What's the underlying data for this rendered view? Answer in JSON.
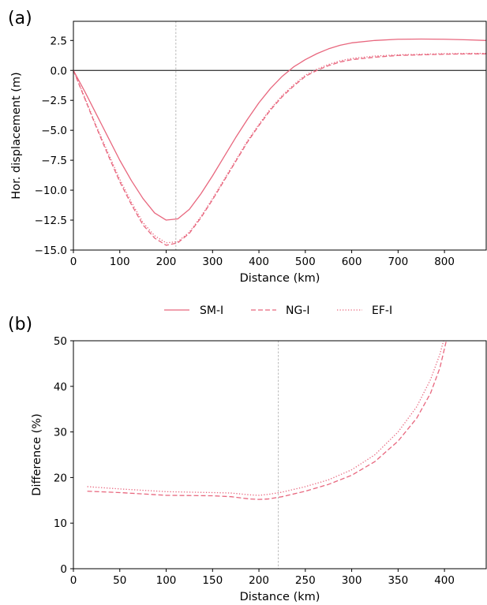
{
  "panel_labels": [
    "(a)",
    "(b)"
  ],
  "series_color": "#e8677e",
  "legend": [
    {
      "label": "SM-I",
      "style": "solid"
    },
    {
      "label": "NG-I",
      "style": "dashed"
    },
    {
      "label": "EF-I",
      "style": "dotted"
    }
  ],
  "chart_data": [
    {
      "type": "line",
      "xlabel": "Distance (km)",
      "ylabel": "Hor. displacement (m)",
      "xlim": [
        0,
        890
      ],
      "ylim": [
        -15,
        4.1
      ],
      "xticks": [
        0,
        100,
        200,
        300,
        400,
        500,
        600,
        700,
        800
      ],
      "yticks": [
        2.5,
        0.0,
        -2.5,
        -5.0,
        -7.5,
        -10.0,
        -12.5,
        -15.0
      ],
      "ytick_labels": [
        "2.5",
        "0.0",
        "−2.5",
        "−5.0",
        "−7.5",
        "−10.0",
        "−12.5",
        "−15.0"
      ],
      "zero_line": 0,
      "vline": 221,
      "series": [
        {
          "name": "SM-I",
          "style": "solid",
          "x": [
            0,
            25,
            50,
            75,
            100,
            125,
            150,
            175,
            200,
            225,
            250,
            275,
            300,
            325,
            350,
            375,
            400,
            425,
            450,
            475,
            500,
            525,
            550,
            575,
            600,
            650,
            700,
            750,
            800,
            850,
            890
          ],
          "y": [
            0,
            -1.8,
            -3.7,
            -5.6,
            -7.5,
            -9.2,
            -10.7,
            -11.9,
            -12.5,
            -12.4,
            -11.6,
            -10.3,
            -8.8,
            -7.2,
            -5.6,
            -4.1,
            -2.7,
            -1.5,
            -0.5,
            0.3,
            0.9,
            1.4,
            1.8,
            2.1,
            2.3,
            2.5,
            2.6,
            2.62,
            2.6,
            2.55,
            2.5
          ]
        },
        {
          "name": "NG-I",
          "style": "dashed",
          "x": [
            0,
            25,
            50,
            75,
            100,
            125,
            150,
            175,
            200,
            225,
            250,
            275,
            300,
            325,
            350,
            375,
            400,
            425,
            450,
            475,
            500,
            525,
            550,
            575,
            600,
            650,
            700,
            750,
            800,
            850,
            890
          ],
          "y": [
            0,
            -2.4,
            -4.8,
            -7.1,
            -9.3,
            -11.2,
            -12.9,
            -14.0,
            -14.6,
            -14.4,
            -13.6,
            -12.3,
            -10.8,
            -9.2,
            -7.6,
            -6.0,
            -4.6,
            -3.3,
            -2.2,
            -1.3,
            -0.5,
            0.0,
            0.4,
            0.7,
            0.9,
            1.1,
            1.25,
            1.3,
            1.35,
            1.38,
            1.38
          ]
        },
        {
          "name": "EF-I",
          "style": "dotted",
          "x": [
            0,
            25,
            50,
            75,
            100,
            125,
            150,
            175,
            200,
            225,
            250,
            275,
            300,
            325,
            350,
            375,
            400,
            425,
            450,
            475,
            500,
            525,
            550,
            575,
            600,
            650,
            700,
            750,
            800,
            850,
            890
          ],
          "y": [
            0,
            -2.3,
            -4.7,
            -6.9,
            -9.1,
            -11.0,
            -12.7,
            -13.8,
            -14.4,
            -14.3,
            -13.5,
            -12.2,
            -10.7,
            -9.1,
            -7.5,
            -5.9,
            -4.5,
            -3.2,
            -2.1,
            -1.2,
            -0.4,
            0.1,
            0.5,
            0.8,
            1.0,
            1.2,
            1.3,
            1.35,
            1.4,
            1.42,
            1.42
          ]
        }
      ]
    },
    {
      "type": "line",
      "xlabel": "Distance (km)",
      "ylabel": "Difference (%)",
      "xlim": [
        0,
        445
      ],
      "ylim": [
        0,
        50
      ],
      "xticks": [
        0,
        50,
        100,
        150,
        200,
        250,
        300,
        350,
        400
      ],
      "yticks": [
        0,
        10,
        20,
        30,
        40,
        50
      ],
      "vline": 221,
      "series": [
        {
          "name": "NG-I",
          "style": "dashed",
          "x": [
            15,
            50,
            100,
            150,
            170,
            190,
            200,
            210,
            225,
            250,
            275,
            300,
            325,
            350,
            370,
            385,
            395,
            402
          ],
          "y": [
            17.0,
            16.7,
            16.1,
            16.0,
            15.8,
            15.3,
            15.2,
            15.3,
            15.8,
            17.0,
            18.5,
            20.5,
            23.5,
            28.0,
            33.0,
            38.5,
            44.0,
            50.0
          ]
        },
        {
          "name": "EF-I",
          "style": "dotted",
          "x": [
            15,
            50,
            100,
            150,
            170,
            190,
            200,
            210,
            225,
            250,
            275,
            300,
            325,
            350,
            370,
            385,
            395,
            399
          ],
          "y": [
            18.0,
            17.5,
            16.9,
            16.7,
            16.6,
            16.2,
            16.1,
            16.3,
            16.8,
            18.0,
            19.5,
            21.7,
            25.0,
            30.0,
            35.5,
            41.5,
            47.0,
            50.0
          ]
        }
      ]
    }
  ]
}
